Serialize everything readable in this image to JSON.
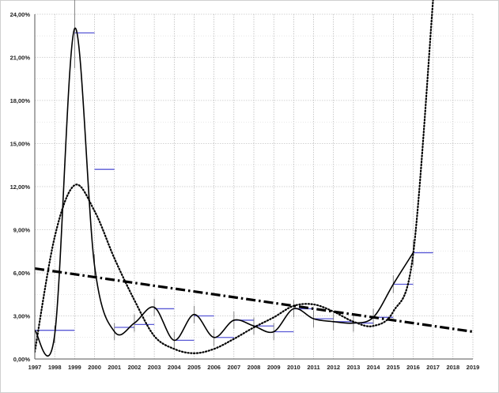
{
  "chart_data": {
    "type": "line",
    "title": "",
    "xlabel": "",
    "ylabel": "",
    "xlim": [
      1997,
      2019
    ],
    "ylim": [
      0,
      24
    ],
    "x_ticks": [
      1997,
      1998,
      1999,
      2000,
      2001,
      2002,
      2003,
      2004,
      2005,
      2006,
      2007,
      2008,
      2009,
      2010,
      2011,
      2012,
      2013,
      2014,
      2015,
      2016,
      2017,
      2018,
      2019
    ],
    "x_tick_labels": [
      "1997",
      "1998",
      "1999",
      "2000",
      "2001",
      "2002",
      "2003",
      "2004",
      "2005",
      "2006",
      "2007",
      "2008",
      "2009",
      "2010",
      "2011",
      "2012",
      "2013",
      "2014",
      "2015",
      "2016",
      "2017",
      "2018",
      "2019"
    ],
    "y_ticks": [
      0,
      3,
      6,
      9,
      12,
      15,
      18,
      21,
      24
    ],
    "y_tick_labels": [
      "0,00%",
      "3,00%",
      "6,00%",
      "9,00%",
      "12,00%",
      "15,00%",
      "18,00%",
      "21,00%",
      "24,00%"
    ],
    "grid": true,
    "legend": "none",
    "series": [
      {
        "style": "solid-smoothed",
        "color": "#000000",
        "x": [
          1997,
          1998,
          1999,
          2000,
          2001,
          2002,
          2003,
          2004,
          2005,
          2006,
          2007,
          2008,
          2009,
          2010,
          2011,
          2012,
          2013,
          2014,
          2015,
          2016
        ],
        "y": [
          2.0,
          1.7,
          23.0,
          6.5,
          1.9,
          2.5,
          3.6,
          1.3,
          3.1,
          1.5,
          2.7,
          2.3,
          1.9,
          3.5,
          2.8,
          2.6,
          2.5,
          2.9,
          5.2,
          7.4
        ]
      },
      {
        "style": "dotted-polynomial-trend",
        "color": "#000000",
        "x": [
          1997,
          1998,
          1999,
          2000,
          2001,
          2002,
          2003,
          2004,
          2005,
          2006,
          2007,
          2008,
          2009,
          2010,
          2011,
          2012,
          2013,
          2014,
          2015,
          2016,
          2017
        ],
        "y": [
          0.5,
          8.5,
          12.1,
          10.3,
          7.0,
          4.1,
          1.6,
          0.7,
          0.4,
          0.7,
          1.4,
          2.2,
          2.9,
          3.7,
          3.8,
          3.3,
          2.6,
          2.3,
          3.3,
          7.3,
          25.0
        ]
      },
      {
        "style": "dash-dot-linear-trend",
        "color": "#000000",
        "x": [
          1997,
          2019
        ],
        "y": [
          6.3,
          1.9
        ]
      }
    ],
    "year_bands": {
      "color": "#5a5ad6",
      "x": [
        1997,
        1998,
        1999,
        2000,
        2001,
        2002,
        2003,
        2004,
        2005,
        2006,
        2007,
        2008,
        2009,
        2010,
        2011,
        2012,
        2013,
        2014,
        2015,
        2016
      ],
      "y": [
        2.0,
        2.0,
        22.7,
        13.2,
        2.2,
        2.4,
        3.5,
        1.3,
        3.0,
        1.5,
        2.7,
        2.3,
        1.9,
        3.5,
        2.8,
        2.6,
        2.5,
        2.9,
        5.2,
        7.4
      ]
    }
  }
}
